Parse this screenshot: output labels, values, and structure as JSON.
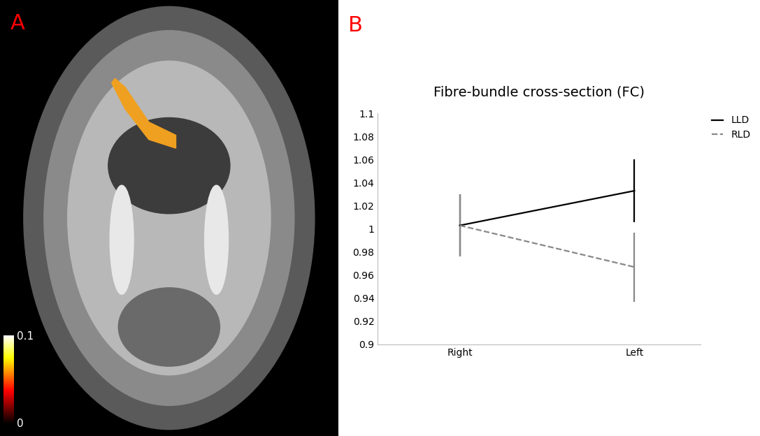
{
  "chart_data": [
    {
      "type": "image",
      "annotations": [
        "A"
      ],
      "colorbar": {
        "range": [
          0,
          0.1
        ],
        "ticks": [
          0,
          0.1
        ]
      }
    },
    {
      "type": "line",
      "annotations": [
        "B"
      ],
      "title": "Fibre-bundle cross-section (FC)",
      "categories": [
        "Right",
        "Left"
      ],
      "series": [
        {
          "name": "LLD",
          "color": "#000000",
          "line_style": "solid",
          "values": [
            1.003,
            1.033
          ],
          "errors": [
            0.027,
            0.027
          ]
        },
        {
          "name": "RLD",
          "color": "#888888",
          "line_style": "dashed",
          "values": [
            1.003,
            0.967
          ],
          "errors": [
            0.027,
            0.03
          ]
        }
      ],
      "ylim": [
        0.9,
        1.1
      ],
      "yticks": [
        0.9,
        0.92,
        0.94,
        0.96,
        0.98,
        1,
        1.02,
        1.04,
        1.06,
        1.08,
        1.1
      ],
      "grid": false,
      "legend": "upper right"
    }
  ]
}
